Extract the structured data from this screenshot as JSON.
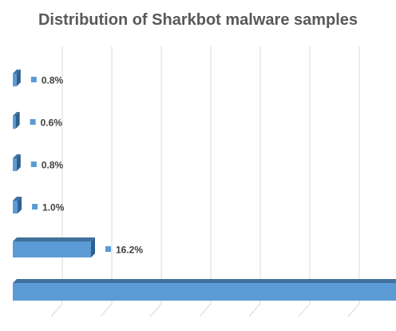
{
  "chart_data": {
    "type": "bar",
    "orientation": "horizontal",
    "style": "3d-clustered-bar",
    "title": "Distribution of Sharkbot malware samples",
    "xlabel": "",
    "ylabel": "",
    "categories": [
      "",
      "",
      "",
      "",
      "",
      ""
    ],
    "values": [
      0.8,
      0.6,
      0.8,
      1.0,
      16.2,
      80.6
    ],
    "data_labels": [
      "0.8%",
      "0.6%",
      "0.8%",
      "1.0%",
      "16.2%",
      ""
    ],
    "xlim": [
      0,
      80
    ],
    "grid": true,
    "legend": "none",
    "bar_color": "#5b9bd5",
    "bar_side_color": "#2e5f91",
    "bar_top_color": "#41719c",
    "label_marker_color": "#5b9bd5"
  }
}
